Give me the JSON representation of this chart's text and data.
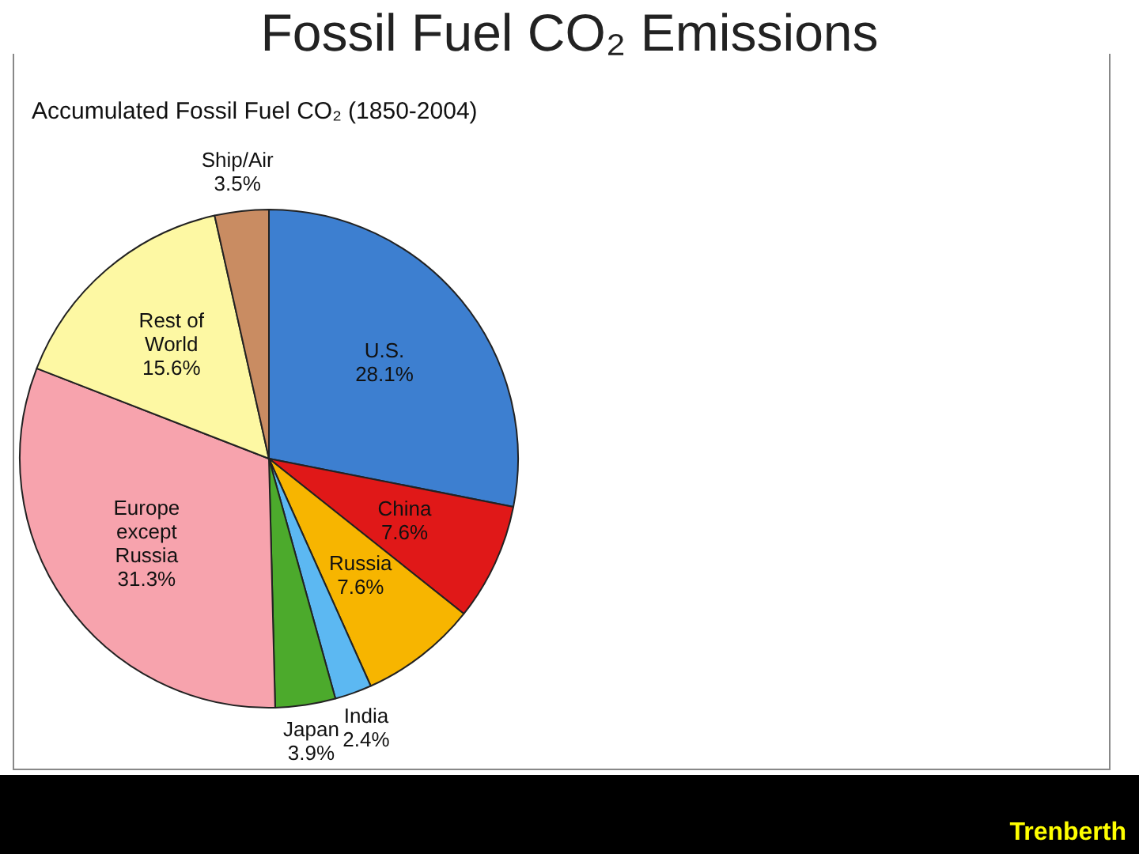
{
  "chart_data": {
    "type": "pie",
    "title": "Fossil Fuel CO₂ Emissions",
    "subtitle": "Accumulated Fossil Fuel CO₂ (1850-2004)",
    "categories": [
      "U.S.",
      "China",
      "Russia",
      "India",
      "Japan",
      "Europe except Russia",
      "Rest of World",
      "Ship/Air"
    ],
    "values": [
      28.1,
      7.6,
      7.6,
      2.4,
      3.9,
      31.3,
      15.6,
      3.5
    ],
    "value_labels": [
      "28.1%",
      "7.6%",
      "7.6%",
      "2.4%",
      "3.9%",
      "31.3%",
      "15.6%",
      "3.5%"
    ],
    "colors": [
      "#3d7fd0",
      "#e01818",
      "#f7b500",
      "#5cb8f2",
      "#4caa2c",
      "#f7a3ad",
      "#fdf8a3",
      "#c98c62"
    ],
    "annotations": [
      "Trenberth"
    ],
    "legend": false
  }
}
